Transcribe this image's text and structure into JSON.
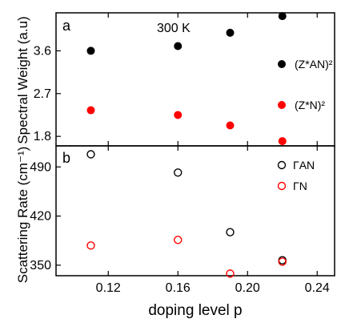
{
  "chart_data": [
    {
      "type": "scatter",
      "panel_label": "a",
      "annotation": "300 K",
      "ylabel": "Spectral  Weight (a.u)",
      "xlim": [
        0.09,
        0.25
      ],
      "ylim": [
        1.6,
        4.4
      ],
      "yticks": [
        "1.8",
        "2.7",
        "3.6"
      ],
      "legend_position": "right",
      "series": [
        {
          "name": "(Z*AN)²",
          "marker": "filled-circle",
          "color": "#000000",
          "x": [
            0.11,
            0.16,
            0.19,
            0.22
          ],
          "y": [
            3.6,
            3.7,
            3.98,
            4.33
          ]
        },
        {
          "name": "(Z*N)²",
          "marker": "filled-circle",
          "color": "#ff0000",
          "x": [
            0.11,
            0.16,
            0.19,
            0.22
          ],
          "y": [
            2.35,
            2.25,
            2.03,
            1.7
          ]
        }
      ]
    },
    {
      "type": "scatter",
      "panel_label": "b",
      "ylabel": "Scattering Rate (cm⁻¹)",
      "xlabel": "doping level  p",
      "xlim": [
        0.09,
        0.25
      ],
      "ylim": [
        335,
        520
      ],
      "xticks": [
        "0.12",
        "0.16",
        "0.20",
        "0.24"
      ],
      "yticks": [
        "350",
        "420",
        "490"
      ],
      "legend_position": "top-right",
      "series": [
        {
          "name": "ΓAN",
          "marker": "open-circle",
          "color": "#000000",
          "x": [
            0.11,
            0.16,
            0.19,
            0.22
          ],
          "y": [
            508,
            482,
            397,
            357
          ]
        },
        {
          "name": "ΓN",
          "marker": "open-circle",
          "color": "#ff0000",
          "x": [
            0.11,
            0.16,
            0.19,
            0.22
          ],
          "y": [
            378,
            386,
            338,
            355
          ]
        }
      ]
    }
  ]
}
